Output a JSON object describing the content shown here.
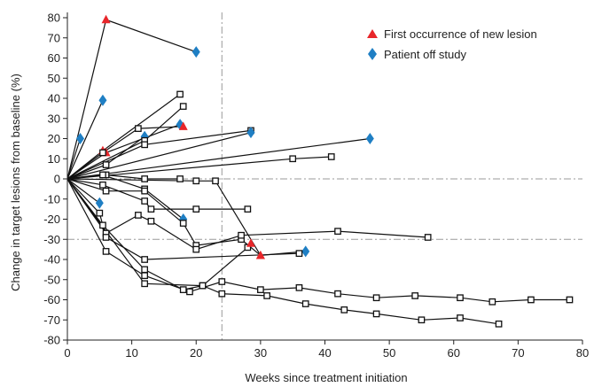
{
  "chart_data": {
    "type": "line",
    "xlabel": "Weeks since treatment initiation",
    "ylabel": "Change in target lesions from baseline (%)",
    "xlim": [
      0,
      80
    ],
    "ylim": [
      -80,
      80
    ],
    "xticks": [
      0,
      10,
      20,
      30,
      40,
      50,
      60,
      70,
      80
    ],
    "yticks": [
      80,
      70,
      60,
      50,
      40,
      30,
      20,
      10,
      0,
      -10,
      -20,
      -30,
      -40,
      -50,
      -60,
      -70,
      -80
    ],
    "grid": false,
    "reference_lines": [
      {
        "axis": "y",
        "value": 0,
        "style": "dash-dot"
      },
      {
        "axis": "y",
        "value": -30,
        "style": "dash-dot"
      },
      {
        "axis": "x",
        "value": 24,
        "style": "dash-dot"
      }
    ],
    "legend_position": "top-right",
    "legend": [
      {
        "label": "First occurrence of new lesion",
        "marker": "triangle",
        "color": "#e8262a"
      },
      {
        "label": "Patient off study",
        "marker": "diamond",
        "color": "#1f7fc4"
      }
    ],
    "colors": {
      "line": "#111111",
      "new_lesion": "#e8262a",
      "off_study": "#1f7fc4"
    },
    "series": [
      {
        "points": [
          [
            0,
            0
          ],
          [
            6,
            79
          ],
          [
            20,
            63
          ]
        ],
        "markers": [
          "",
          "triangle",
          "diamond"
        ]
      },
      {
        "points": [
          [
            0,
            0
          ],
          [
            5.5,
            39
          ]
        ],
        "markers": [
          "",
          "diamond"
        ]
      },
      {
        "points": [
          [
            0,
            0
          ],
          [
            2,
            20
          ]
        ],
        "markers": [
          "",
          "diamond"
        ]
      },
      {
        "points": [
          [
            0,
            0
          ],
          [
            5.5,
            14
          ],
          [
            17.5,
            42
          ]
        ],
        "markers": [
          "",
          "triangle",
          "square"
        ]
      },
      {
        "points": [
          [
            0,
            0
          ],
          [
            6,
            13
          ],
          [
            17.5,
            27
          ]
        ],
        "markers": [
          "",
          "triangle",
          "diamond"
        ]
      },
      {
        "points": [
          [
            0,
            0
          ],
          [
            5.5,
            13
          ],
          [
            11,
            25
          ],
          [
            18,
            26
          ]
        ],
        "markers": [
          "",
          "square",
          "square",
          "triangle"
        ]
      },
      {
        "points": [
          [
            0,
            0
          ],
          [
            6,
            7
          ],
          [
            12,
            21
          ]
        ],
        "markers": [
          "",
          "square",
          "diamond"
        ]
      },
      {
        "points": [
          [
            0,
            0
          ],
          [
            12,
            19
          ],
          [
            18,
            36
          ]
        ],
        "markers": [
          "",
          "square",
          "square"
        ]
      },
      {
        "points": [
          [
            0,
            0
          ],
          [
            12,
            17
          ],
          [
            28.5,
            24
          ]
        ],
        "markers": [
          "",
          "square",
          "square"
        ]
      },
      {
        "points": [
          [
            0,
            0
          ],
          [
            28.5,
            23
          ]
        ],
        "markers": [
          "",
          "diamond"
        ]
      },
      {
        "points": [
          [
            0,
            0
          ],
          [
            47,
            20
          ]
        ],
        "markers": [
          "",
          "diamond"
        ]
      },
      {
        "points": [
          [
            0,
            0
          ],
          [
            35,
            10
          ],
          [
            41,
            11
          ]
        ],
        "markers": [
          "",
          "square",
          "square"
        ]
      },
      {
        "points": [
          [
            0,
            0
          ],
          [
            20,
            -1
          ],
          [
            23,
            -1
          ],
          [
            30,
            -38
          ],
          [
            37,
            -36
          ]
        ],
        "markers": [
          "",
          "square",
          "square",
          "triangle",
          "diamond"
        ]
      },
      {
        "points": [
          [
            0,
            0
          ],
          [
            5,
            -12
          ]
        ],
        "markers": [
          "",
          "diamond"
        ]
      },
      {
        "points": [
          [
            0,
            0
          ],
          [
            6,
            2
          ],
          [
            12,
            0
          ],
          [
            17.5,
            0
          ]
        ],
        "markers": [
          "",
          "square",
          "square",
          "square"
        ]
      },
      {
        "points": [
          [
            0,
            0
          ],
          [
            5.5,
            2
          ],
          [
            12,
            -5
          ],
          [
            18,
            -20
          ]
        ],
        "markers": [
          "",
          "square",
          "square",
          "diamond"
        ]
      },
      {
        "points": [
          [
            0,
            0
          ],
          [
            6,
            -6
          ],
          [
            12,
            -6
          ],
          [
            18,
            -22
          ],
          [
            20,
            -33
          ],
          [
            27,
            -30
          ],
          [
            30,
            -38
          ]
        ],
        "markers": [
          "",
          "square",
          "square",
          "square",
          "square",
          "square",
          "triangle"
        ]
      },
      {
        "points": [
          [
            0,
            0
          ],
          [
            5.5,
            -3
          ],
          [
            12,
            -11
          ],
          [
            13,
            -15
          ],
          [
            20,
            -15
          ],
          [
            28,
            -15
          ]
        ],
        "markers": [
          "",
          "square",
          "square",
          "square",
          "square",
          "square"
        ]
      },
      {
        "points": [
          [
            0,
            0
          ],
          [
            6,
            -27
          ],
          [
            11,
            -18
          ],
          [
            13,
            -21
          ],
          [
            20,
            -35
          ],
          [
            27,
            -28
          ],
          [
            42,
            -26
          ],
          [
            56,
            -29
          ]
        ],
        "markers": [
          "",
          "square",
          "square",
          "square",
          "square",
          "square",
          "square",
          "square"
        ]
      },
      {
        "points": [
          [
            0,
            0
          ],
          [
            5,
            -17
          ],
          [
            6,
            -29
          ],
          [
            12,
            -40
          ],
          [
            36,
            -37
          ]
        ],
        "markers": [
          "",
          "square",
          "square",
          "square",
          "square"
        ]
      },
      {
        "points": [
          [
            0,
            0
          ],
          [
            6,
            -36
          ],
          [
            12,
            -48
          ],
          [
            19,
            -56
          ],
          [
            24,
            -51
          ],
          [
            30,
            -55
          ],
          [
            36,
            -54
          ],
          [
            42,
            -57
          ],
          [
            48,
            -59
          ],
          [
            54,
            -58
          ],
          [
            61,
            -59
          ],
          [
            66,
            -61
          ],
          [
            72,
            -60
          ],
          [
            78,
            -60
          ]
        ],
        "markers": [
          "",
          "square",
          "square",
          "square",
          "square",
          "square",
          "square",
          "square",
          "square",
          "square",
          "square",
          "square",
          "square",
          "square"
        ]
      },
      {
        "points": [
          [
            0,
            0
          ],
          [
            5.5,
            -23
          ],
          [
            12,
            -45
          ],
          [
            18,
            -55
          ],
          [
            21,
            -53
          ],
          [
            24,
            -57
          ],
          [
            31,
            -58
          ],
          [
            37,
            -62
          ],
          [
            43,
            -65
          ],
          [
            48,
            -67
          ],
          [
            55,
            -70
          ],
          [
            61,
            -69
          ],
          [
            67,
            -72
          ]
        ],
        "markers": [
          "",
          "square",
          "square",
          "square",
          "square",
          "square",
          "square",
          "square",
          "square",
          "square",
          "square",
          "square",
          "square"
        ]
      },
      {
        "points": [
          [
            0,
            0
          ],
          [
            12,
            -52
          ],
          [
            21,
            -53
          ],
          [
            28,
            -34
          ],
          [
            28.5,
            -32
          ]
        ],
        "markers": [
          "",
          "square",
          "square",
          "square",
          "triangle"
        ]
      }
    ]
  }
}
